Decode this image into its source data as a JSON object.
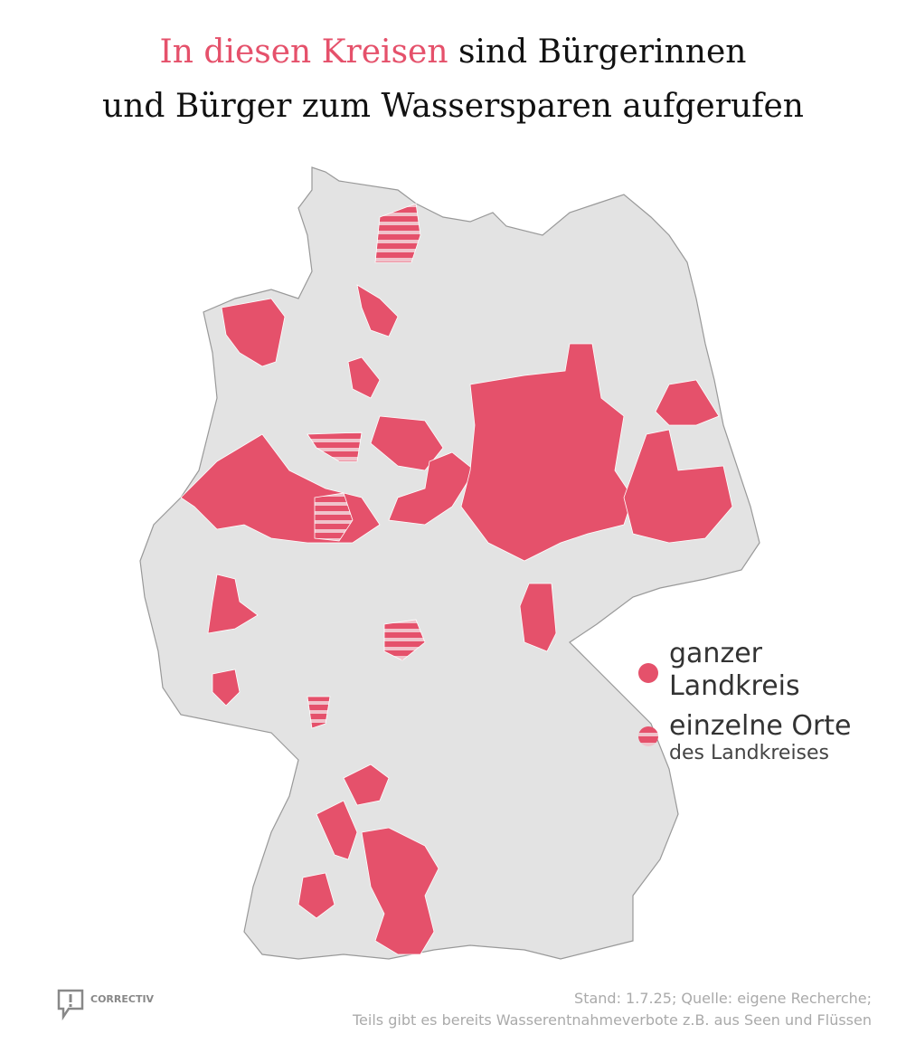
{
  "header": {
    "title_highlight": "In diesen Kreisen",
    "title_rest_line1": "sind Bürgerinnen",
    "title_line2": "und Bürger zum Wassersparen aufgerufen"
  },
  "legend": {
    "whole": "ganzer Landkreis",
    "partial": "einzelne Orte",
    "partial_sub": "des Landkreises"
  },
  "footer": {
    "logo": "CORRECTIV",
    "source": "Stand: 1.7.25; Quelle: eigene Recherche;",
    "note": "Teils gibt es bereits Wasserentnahmeverbote z.B. aus Seen und Flüssen"
  }
}
